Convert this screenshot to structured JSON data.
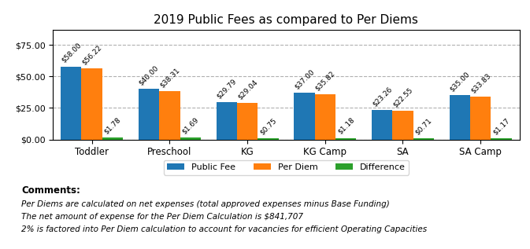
{
  "chart_data": {
    "type": "bar",
    "title": "2019 Public Fees as compared to Per Diems",
    "categories": [
      "Toddler",
      "Preschool",
      "KG",
      "KG Camp",
      "SA",
      "SA Camp"
    ],
    "series": [
      {
        "name": "Public Fee",
        "values": [
          58.0,
          40.0,
          29.79,
          37.0,
          23.26,
          35.0
        ],
        "value_labels": [
          "$58.00",
          "$40.00",
          "$29.79",
          "$37.00",
          "$23.26",
          "$35.00"
        ]
      },
      {
        "name": "Per Diem",
        "values": [
          56.22,
          38.31,
          29.04,
          35.82,
          22.55,
          33.83
        ],
        "value_labels": [
          "$56.22",
          "$38.31",
          "$29.04",
          "$35.82",
          "$22.55",
          "$33.83"
        ]
      },
      {
        "name": "Difference",
        "values": [
          1.78,
          1.69,
          0.75,
          1.18,
          0.71,
          1.17
        ],
        "value_labels": [
          "$1.78",
          "$1.69",
          "$0.75",
          "$1.18",
          "$0.71",
          "$1.17"
        ]
      }
    ],
    "ylim": [
      0,
      87
    ],
    "yticks": [
      {
        "value": 0.0,
        "label": "$0.00"
      },
      {
        "value": 25.0,
        "label": "$25.00"
      },
      {
        "value": 50.0,
        "label": "$50.00"
      },
      {
        "value": 75.0,
        "label": "$75.00"
      }
    ],
    "grid": true,
    "legend": "upper center",
    "data_labels": true,
    "annotations": [
      "Comments:",
      "Per Diems are calculated on net expenses (total approved expenses minus Base Funding)",
      "The net amount of expense for the Per Diem Calculation is $841,707",
      "2% is factored into Per Diem calculation to account for vacancies for efficient Operating Capacities"
    ]
  }
}
